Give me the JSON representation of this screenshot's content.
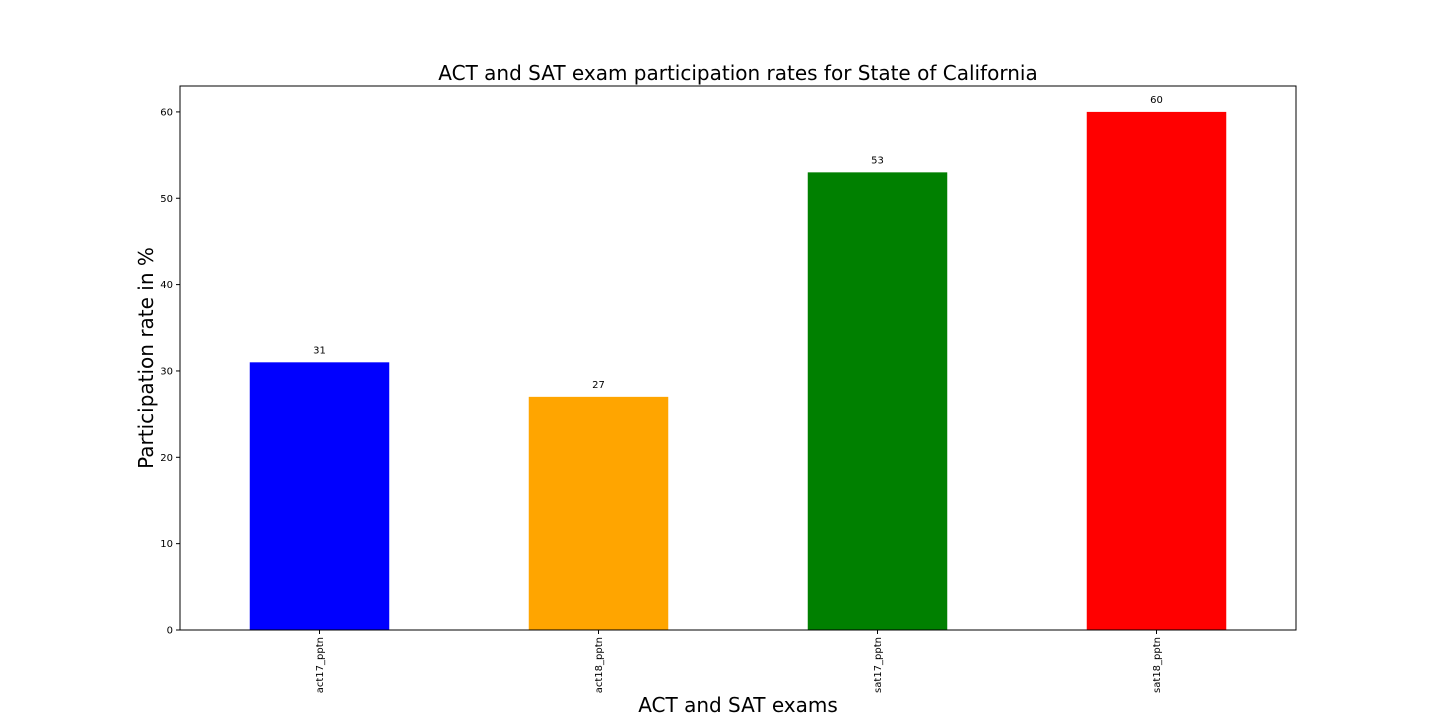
{
  "chart_data": {
    "type": "bar",
    "title": "ACT and SAT exam participation rates for State of California",
    "xlabel": "ACT and SAT exams",
    "ylabel": "Participation rate in %",
    "categories": [
      "act17_pptn",
      "act18_pptn",
      "sat17_pptn",
      "sat18_pptn"
    ],
    "values": [
      31,
      27,
      53,
      60
    ],
    "data_labels": [
      "31",
      "27",
      "53",
      "60"
    ],
    "colors": [
      "#0000ff",
      "#ffa500",
      "#008000",
      "#ff0000"
    ],
    "ylim": [
      0,
      63
    ],
    "yticks": [
      0,
      10,
      20,
      30,
      40,
      50,
      60
    ],
    "ytick_labels": [
      "0",
      "10",
      "20",
      "30",
      "40",
      "50",
      "60"
    ],
    "grid": false,
    "legend": "none"
  }
}
